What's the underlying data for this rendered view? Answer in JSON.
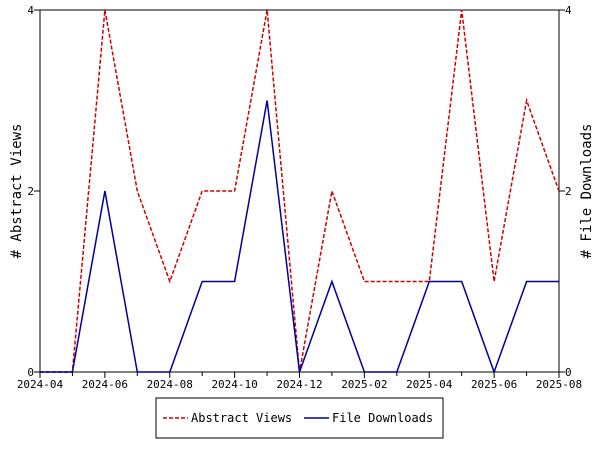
{
  "chart_data": {
    "type": "line",
    "title": "",
    "xlabel": "",
    "ylabel_left": "# Abstract Views",
    "ylabel_right": "# File Downloads",
    "ylim": [
      0,
      4
    ],
    "y_ticks": [
      0,
      2,
      4
    ],
    "x": [
      "2024-04",
      "2024-05",
      "2024-06",
      "2024-07",
      "2024-08",
      "2024-09",
      "2024-10",
      "2024-11",
      "2024-12",
      "2025-01",
      "2025-02",
      "2025-03",
      "2025-04",
      "2025-05",
      "2025-06",
      "2025-07",
      "2025-08"
    ],
    "x_tick_labels": [
      "2024-04",
      "2024-06",
      "2024-08",
      "2024-10",
      "2024-12",
      "2025-02",
      "2025-04",
      "2025-06",
      "2025-08"
    ],
    "series": [
      {
        "name": "Abstract Views",
        "axis": "left",
        "color": "#cc0000",
        "style": "dashed",
        "values": [
          0,
          0,
          4,
          2,
          1,
          2,
          2,
          4,
          0,
          2,
          1,
          1,
          1,
          4,
          1,
          3,
          2
        ]
      },
      {
        "name": "File Downloads",
        "axis": "right",
        "color": "#000099",
        "style": "solid",
        "values": [
          0,
          0,
          2,
          0,
          0,
          1,
          1,
          3,
          0,
          1,
          0,
          0,
          1,
          1,
          0,
          1,
          1
        ]
      }
    ],
    "legend_position": "bottom-center",
    "grid": false
  }
}
